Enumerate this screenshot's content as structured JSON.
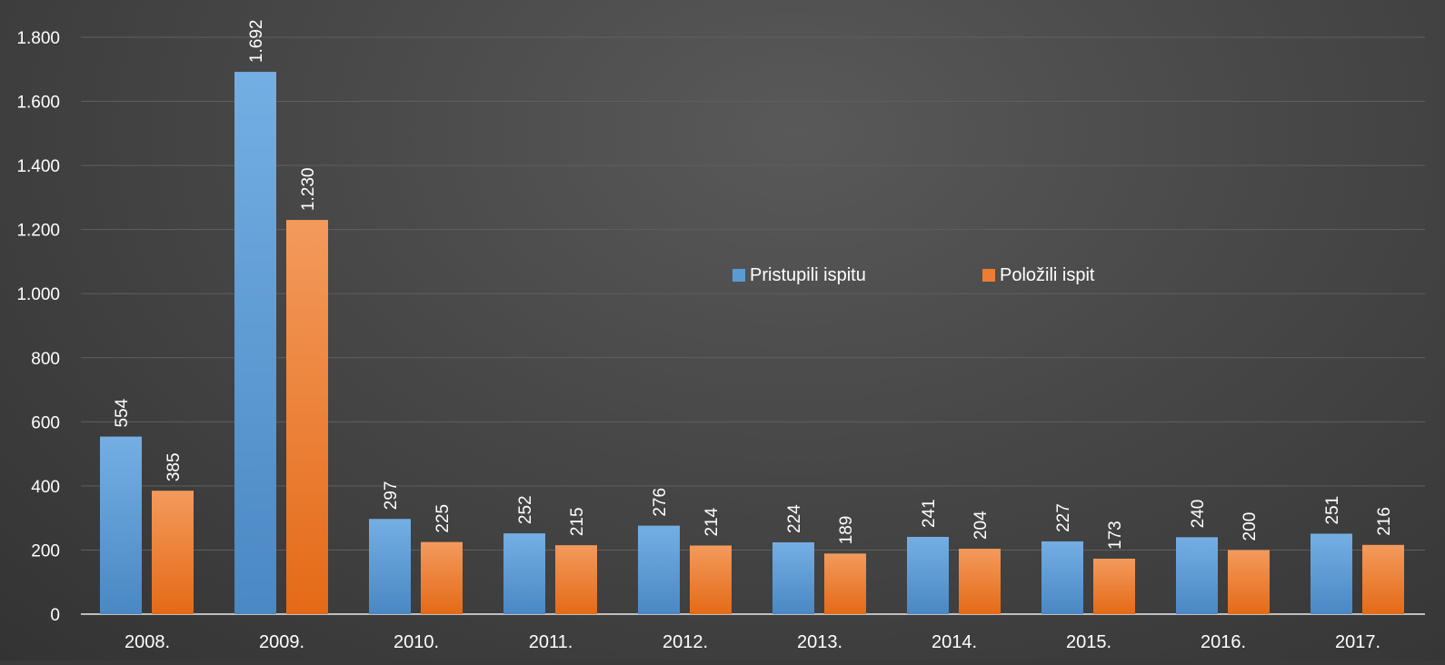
{
  "colors": {
    "series_1": "#5b9bd5",
    "series_1_light": "#74aee3",
    "series_1_dark": "#4a88c4",
    "series_2": "#ed7d31",
    "series_2_light": "#f39a5c",
    "series_2_dark": "#e46a17",
    "text": "#ffffff",
    "grid": "#5f5f5f",
    "axis": "#bfbfbf"
  },
  "chart_data": {
    "type": "bar",
    "title": "",
    "xlabel": "",
    "ylabel": "",
    "categories": [
      "2008.",
      "2009.",
      "2010.",
      "2011.",
      "2012.",
      "2013.",
      "2014.",
      "2015.",
      "2016.",
      "2017."
    ],
    "series": [
      {
        "name": "Pristupili ispitu",
        "values": [
          554,
          1692,
          297,
          252,
          276,
          224,
          241,
          227,
          240,
          251
        ],
        "labels": [
          "554",
          "1.692",
          "297",
          "252",
          "276",
          "224",
          "241",
          "227",
          "240",
          "251"
        ]
      },
      {
        "name": "Položili ispit",
        "values": [
          385,
          1230,
          225,
          215,
          214,
          189,
          204,
          173,
          200,
          216
        ],
        "labels": [
          "385",
          "1.230",
          "225",
          "215",
          "214",
          "189",
          "204",
          "173",
          "200",
          "216"
        ]
      }
    ],
    "ylim": [
      0,
      1800
    ],
    "yticks": [
      0,
      200,
      400,
      600,
      800,
      1000,
      1200,
      1400,
      1600,
      1800
    ],
    "ytick_labels": [
      "0",
      "200",
      "400",
      "600",
      "800",
      "1.000",
      "1.200",
      "1.400",
      "1.600",
      "1.800"
    ],
    "grid": true,
    "legend": "center-right",
    "data_labels": "rotated"
  }
}
